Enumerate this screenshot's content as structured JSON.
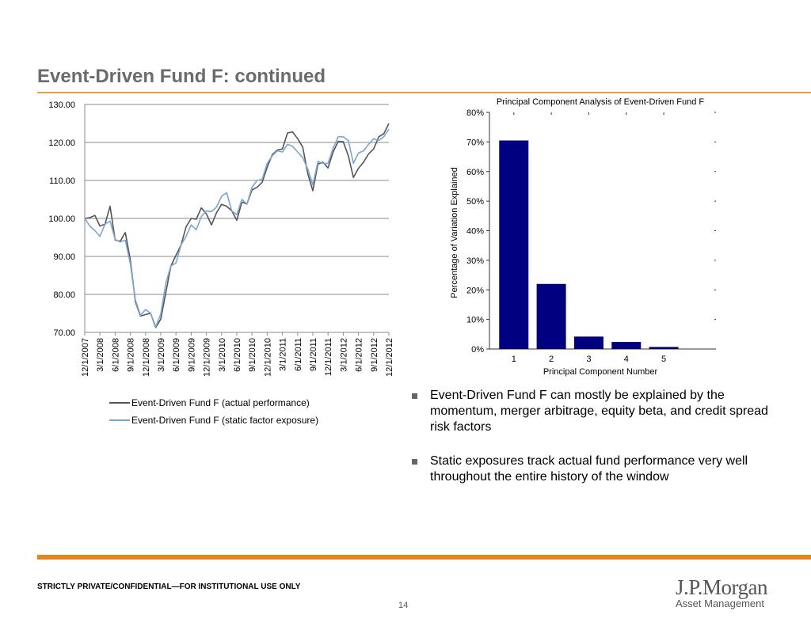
{
  "slide": {
    "title": "Event-Driven Fund F: continued",
    "footer_confidential": "STRICTLY PRIVATE/CONFIDENTIAL—FOR INSTITUTIONAL USE ONLY",
    "page_number": "14",
    "logo": {
      "main": "J.P.Morgan",
      "sub": "Asset Management"
    }
  },
  "bullets": [
    "Event-Driven Fund F can mostly be explained by the momentum, merger arbitrage, equity beta, and credit spread risk factors",
    "Static exposures track actual fund performance very well throughout the entire history of the window"
  ],
  "colors": {
    "accent": "#e8a046",
    "actual": "#555555",
    "static": "#7aa6d6",
    "bar": "#000080"
  },
  "chart_data": [
    {
      "type": "line",
      "title": "",
      "ylim": [
        70,
        130
      ],
      "yticks": [
        "130.00",
        "120.00",
        "110.00",
        "100.00",
        "90.00",
        "80.00",
        "70.00"
      ],
      "xtick_labels": [
        "12/1/2007",
        "3/1/2008",
        "6/1/2008",
        "9/1/2008",
        "12/1/2008",
        "3/1/2009",
        "6/1/2009",
        "9/1/2009",
        "12/1/2009",
        "3/1/2010",
        "6/1/2010",
        "9/1/2010",
        "12/1/2010",
        "3/1/2011",
        "6/1/2011",
        "9/1/2011",
        "12/1/2011",
        "3/1/2012",
        "6/1/2012",
        "9/1/2012",
        "12/1/2012"
      ],
      "grid": true,
      "legend_position": "bottom",
      "series": [
        {
          "name": "Event-Driven Fund F (actual performance)",
          "color": "#555555",
          "values": [
            100.0,
            100.2,
            100.8,
            98.0,
            98.5,
            103.2,
            94.3,
            94.0,
            96.3,
            89.0,
            78.0,
            74.3,
            74.7,
            75.0,
            71.3,
            73.5,
            80.5,
            87.5,
            90.3,
            93.0,
            97.8,
            100.0,
            99.8,
            102.8,
            101.2,
            98.3,
            101.5,
            103.7,
            103.2,
            102.0,
            99.5,
            104.3,
            103.8,
            107.5,
            108.2,
            109.5,
            113.5,
            116.8,
            118.0,
            118.3,
            122.5,
            122.8,
            121.0,
            118.8,
            111.8,
            107.3,
            114.3,
            114.8,
            113.3,
            117.5,
            120.3,
            120.2,
            116.5,
            110.8,
            113.2,
            114.8,
            117.0,
            118.3,
            121.5,
            122.3,
            125.0
          ]
        },
        {
          "name": "Event-Driven Fund F (static factor exposure)",
          "color": "#7aa6d6",
          "values": [
            100.0,
            98.0,
            96.8,
            95.3,
            98.5,
            99.3,
            94.5,
            93.8,
            94.3,
            88.0,
            78.5,
            74.5,
            76.0,
            75.0,
            71.5,
            74.8,
            83.0,
            87.5,
            88.3,
            93.0,
            95.3,
            98.3,
            97.0,
            100.5,
            102.0,
            101.8,
            103.0,
            105.8,
            106.8,
            102.0,
            101.0,
            105.0,
            103.8,
            108.2,
            110.0,
            110.3,
            114.5,
            116.5,
            117.8,
            117.5,
            119.5,
            119.0,
            117.5,
            116.0,
            113.0,
            108.8,
            115.0,
            114.5,
            114.5,
            118.5,
            121.5,
            121.5,
            120.5,
            114.5,
            117.2,
            117.8,
            119.5,
            121.0,
            120.5,
            121.5,
            123.5
          ]
        }
      ]
    },
    {
      "type": "bar",
      "title": "Principal Component Analysis of Event-Driven Fund F",
      "xlabel": "Principal Component Number",
      "ylabel": "Percentage of Variation Explained",
      "categories": [
        "1",
        "2",
        "3",
        "4",
        "5"
      ],
      "values": [
        70.5,
        22.0,
        4.2,
        2.4,
        0.7
      ],
      "ylim": [
        0,
        80
      ],
      "yticks": [
        "0%",
        "10%",
        "20%",
        "30%",
        "40%",
        "50%",
        "60%",
        "70%",
        "80%"
      ],
      "grid": false,
      "legend_position": "none"
    }
  ]
}
